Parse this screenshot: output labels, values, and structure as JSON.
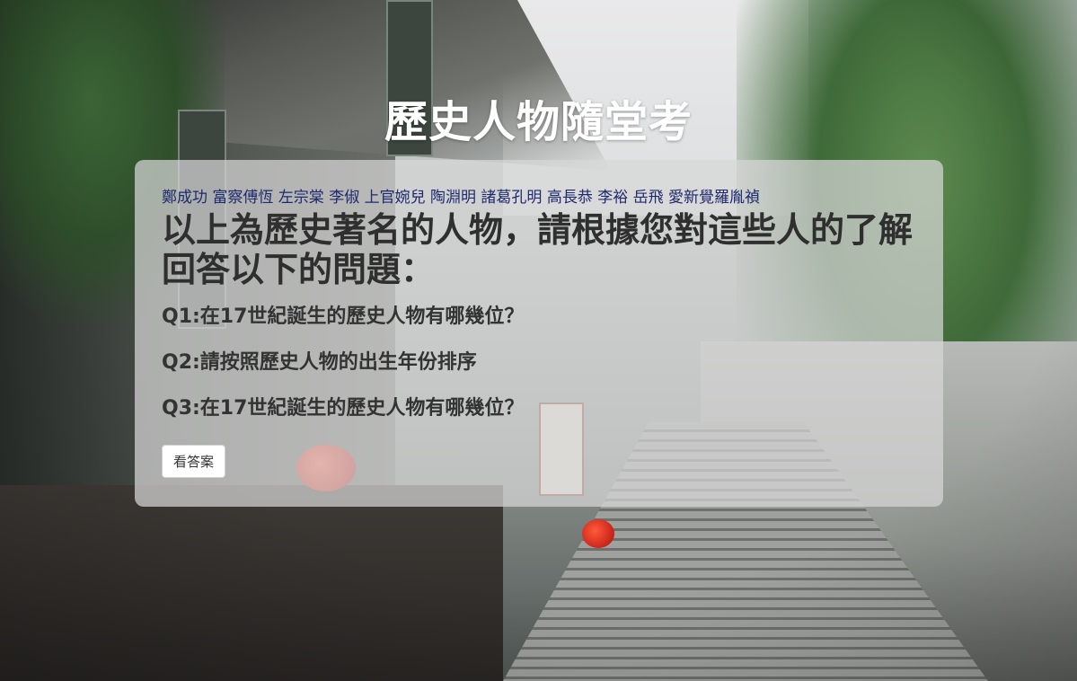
{
  "page": {
    "title": "歷史人物隨堂考"
  },
  "quiz": {
    "names": "鄭成功 富察傅恆 左宗棠 李俶 上官婉兒 陶淵明 諸葛孔明 高長恭 李裕 岳飛 愛新覺羅胤禎",
    "prompt": "以上為歷史著名的人物，請根據您對這些人的了解回答以下的問題：",
    "questions": [
      "Q1:在17世紀誕生的歷史人物有哪幾位？",
      "Q2:請按照歷史人物的出生年份排序",
      "Q3:在17世紀誕生的歷史人物有哪幾位？"
    ],
    "answer_button_label": "看答案"
  },
  "colors": {
    "names_text": "#1e2a6e",
    "card_background": "rgba(215,215,215,0.72)",
    "title_text": "#ffffff"
  }
}
